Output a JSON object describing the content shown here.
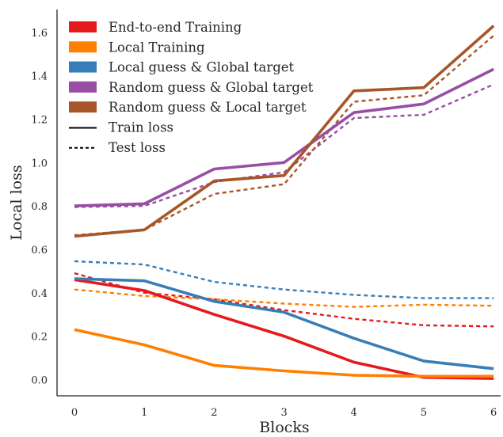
{
  "chart_data": {
    "type": "line",
    "title": "",
    "xlabel": "Blocks",
    "ylabel": "Local loss",
    "x": [
      0,
      1,
      2,
      3,
      4,
      5,
      6
    ],
    "xlim": [
      -0.25,
      6.1
    ],
    "ylim": [
      -0.075,
      1.705
    ],
    "x_ticks": [
      "0",
      "1",
      "2",
      "3",
      "4",
      "5",
      "6"
    ],
    "y_ticks": [
      "0.0",
      "0.2",
      "0.4",
      "0.6",
      "0.8",
      "1.0",
      "1.2",
      "1.4",
      "1.6"
    ],
    "grid": false,
    "legend_position": "top-left",
    "series": [
      {
        "name": "End-to-end Training",
        "color": "#e41a1c",
        "train": [
          0.46,
          0.41,
          0.3,
          0.2,
          0.08,
          0.01,
          0.005
        ],
        "test": [
          0.49,
          0.4,
          0.37,
          0.32,
          0.28,
          0.25,
          0.245
        ]
      },
      {
        "name": "Local Training",
        "color": "#ff7f00",
        "train": [
          0.23,
          0.16,
          0.065,
          0.04,
          0.02,
          0.015,
          0.015
        ],
        "test": [
          0.415,
          0.385,
          0.37,
          0.35,
          0.335,
          0.345,
          0.34
        ]
      },
      {
        "name": "Local guess & Global target",
        "color": "#377eb8",
        "train": [
          0.465,
          0.455,
          0.36,
          0.31,
          0.19,
          0.085,
          0.05
        ],
        "test": [
          0.545,
          0.53,
          0.45,
          0.415,
          0.39,
          0.375,
          0.375
        ]
      },
      {
        "name": "Random guess & Global target",
        "color": "#984ea3",
        "train": [
          0.8,
          0.81,
          0.97,
          1.0,
          1.23,
          1.27,
          1.43
        ],
        "test": [
          0.795,
          0.8,
          0.91,
          0.955,
          1.205,
          1.22,
          1.36
        ]
      },
      {
        "name": "Random guess & Local target",
        "color": "#a65628",
        "train": [
          0.66,
          0.69,
          0.915,
          0.94,
          1.33,
          1.345,
          1.63
        ],
        "test": [
          0.665,
          0.69,
          0.855,
          0.9,
          1.28,
          1.31,
          1.585
        ]
      }
    ],
    "line_styles": [
      {
        "label": "Train loss",
        "style": "solid"
      },
      {
        "label": "Test loss",
        "style": "dashed"
      }
    ]
  }
}
